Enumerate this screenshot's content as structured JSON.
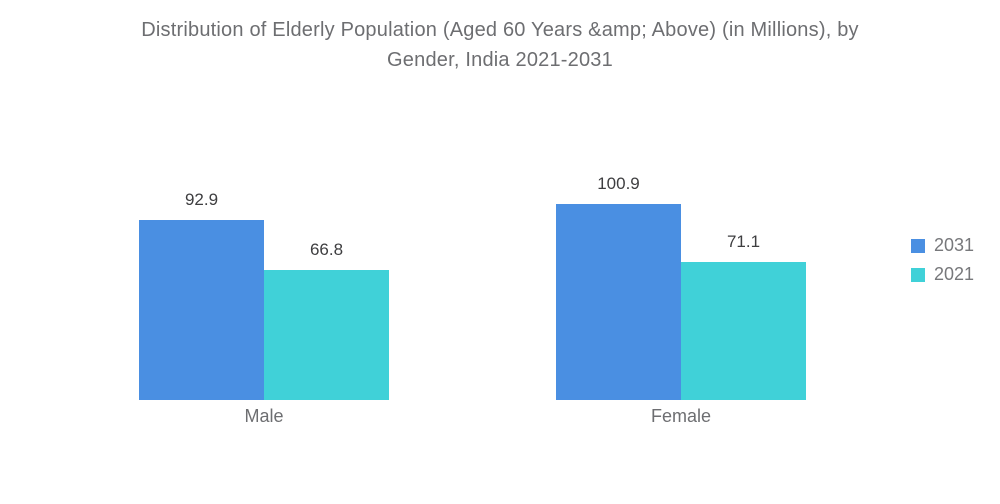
{
  "header": {
    "title_line1": "Distribution of Elderly Population (Aged 60 Years &amp; Above) (in Millions), by",
    "title_line2": "Gender, India 2021-2031"
  },
  "colors": {
    "background": "#ffffff",
    "series_2031": "#4a8fe2",
    "series_2021": "#40d1d8"
  },
  "chart_data": {
    "type": "bar",
    "title": "Distribution of Elderly Population (Aged 60 Years &amp; Above) (in Millions), by Gender, India 2021-2031",
    "categories": [
      "Male",
      "Female"
    ],
    "series": [
      {
        "name": "2031",
        "color": "#4a8fe2",
        "values": [
          92.9,
          100.9
        ]
      },
      {
        "name": "2021",
        "color": "#40d1d8",
        "values": [
          66.8,
          71.1
        ]
      }
    ],
    "xlabel": "",
    "ylabel": "",
    "ylim": [
      0,
      100.9
    ],
    "grid": false,
    "axes_hidden": true,
    "value_labels_shown": true,
    "legend_position": "right"
  }
}
